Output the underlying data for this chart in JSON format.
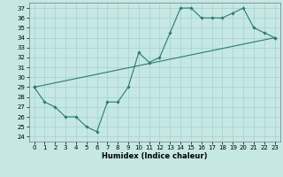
{
  "title": "",
  "xlabel": "Humidex (Indice chaleur)",
  "ylabel": "",
  "bg_color": "#c5e8e5",
  "grid_color": "#a8d0cc",
  "line_color": "#2d7a6e",
  "xlim": [
    -0.5,
    23.5
  ],
  "ylim": [
    23.5,
    37.5
  ],
  "yticks": [
    24,
    25,
    26,
    27,
    28,
    29,
    30,
    31,
    32,
    33,
    34,
    35,
    36,
    37
  ],
  "xticks": [
    0,
    1,
    2,
    3,
    4,
    5,
    6,
    7,
    8,
    9,
    10,
    11,
    12,
    13,
    14,
    15,
    16,
    17,
    18,
    19,
    20,
    21,
    22,
    23
  ],
  "line1_x": [
    0,
    1,
    2,
    3,
    4,
    5,
    6,
    7,
    8,
    9,
    10,
    11,
    12,
    13,
    14,
    15,
    16,
    17,
    18,
    19,
    20,
    21,
    22,
    23
  ],
  "line1_y": [
    29,
    27.5,
    27,
    26,
    26,
    25,
    24.5,
    27.5,
    27.5,
    29,
    32.5,
    31.5,
    32,
    34.5,
    37,
    37,
    36,
    36,
    36,
    36.5,
    37,
    35,
    34.5,
    34
  ],
  "line2_x": [
    0,
    23
  ],
  "line2_y": [
    29,
    34
  ],
  "xlabel_fontsize": 6,
  "tick_fontsize": 5
}
